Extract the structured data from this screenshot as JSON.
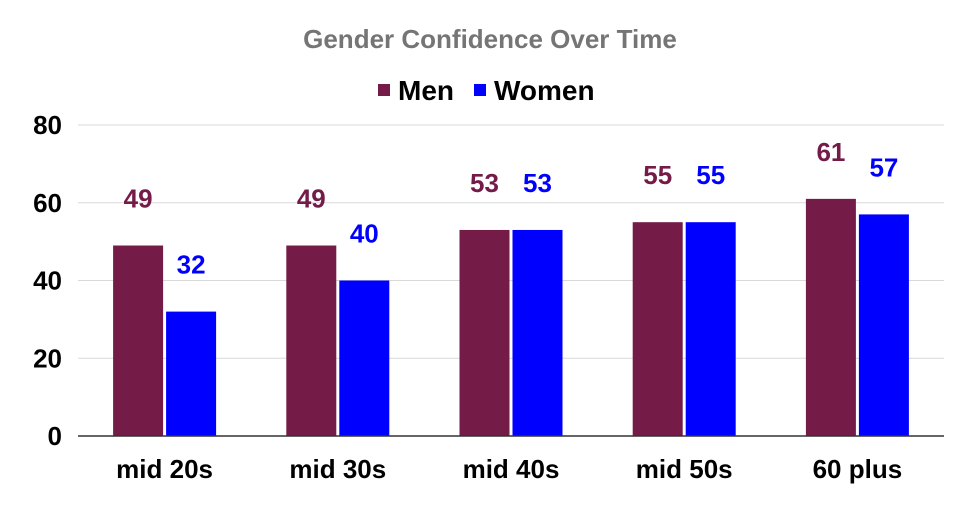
{
  "chart_data": {
    "type": "bar",
    "title": "Gender Confidence Over Time",
    "categories": [
      "mid 20s",
      "mid 30s",
      "mid 40s",
      "mid 50s",
      "60 plus"
    ],
    "series": [
      {
        "name": "Men",
        "values": [
          49,
          49,
          53,
          55,
          61
        ],
        "color": "#741b47"
      },
      {
        "name": "Women",
        "values": [
          32,
          40,
          53,
          55,
          57
        ],
        "color": "#0000ff"
      }
    ],
    "ylim": [
      0,
      80
    ],
    "yticks": [
      "0",
      "20",
      "40",
      "60",
      "80"
    ],
    "xlabel": "",
    "ylabel": "",
    "legend": "top",
    "grid": true,
    "data_labels": true
  }
}
